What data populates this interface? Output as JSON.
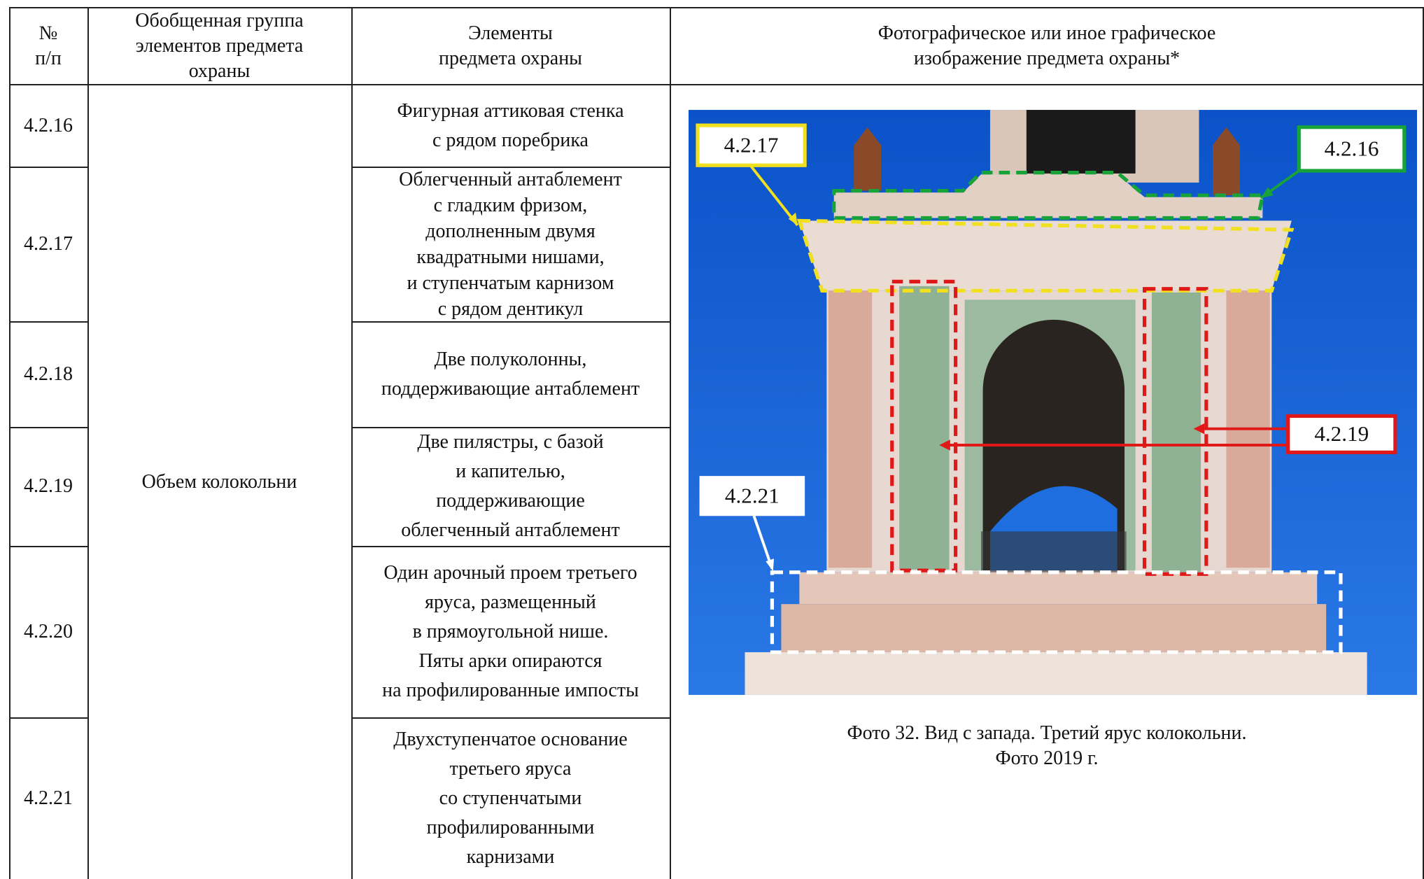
{
  "header": {
    "number": "№\nп/п",
    "group": "Обобщенная группа\nэлементов предмета\nохраны",
    "elements": "Элементы\nпредмета охраны",
    "image": "Фотографическое или иное графическое\nизображение предмета охраны*"
  },
  "group": "Объем колокольни",
  "rows": [
    {
      "number": "4.2.16",
      "element": "Фигурная аттиковая стенка\nс рядом поребрика"
    },
    {
      "number": "4.2.17",
      "element": "Облегченный антаблемент\nс гладким фризом,\nдополненным двумя\nквадратными нишами,\nи ступенчатым карнизом\nс рядом дентикул"
    },
    {
      "number": "4.2.18",
      "element": "Две полуколонны,\nподдерживающие антаблемент"
    },
    {
      "number": "4.2.19",
      "element": "Две пилястры, с базой\nи капителью,\nподдерживающие\nоблегченный антаблемент"
    },
    {
      "number": "4.2.20",
      "element": "Один арочный проем третьего\nяруса, размещенный\nв прямоугольной нише.\nПяты арки опираются\nна профилированные импосты"
    },
    {
      "number": "4.2.21",
      "element": "Двухступенчатое основание\nтретьего яруса\nсо ступенчатыми\nпрофилированными\nкарнизами"
    }
  ],
  "photo": {
    "labels": [
      "4.2.17",
      "4.2.16",
      "4.2.19",
      "4.2.21"
    ],
    "caption": "Фото 32. Вид с запада. Третий ярус колокольни.\nФото 2019 г."
  }
}
